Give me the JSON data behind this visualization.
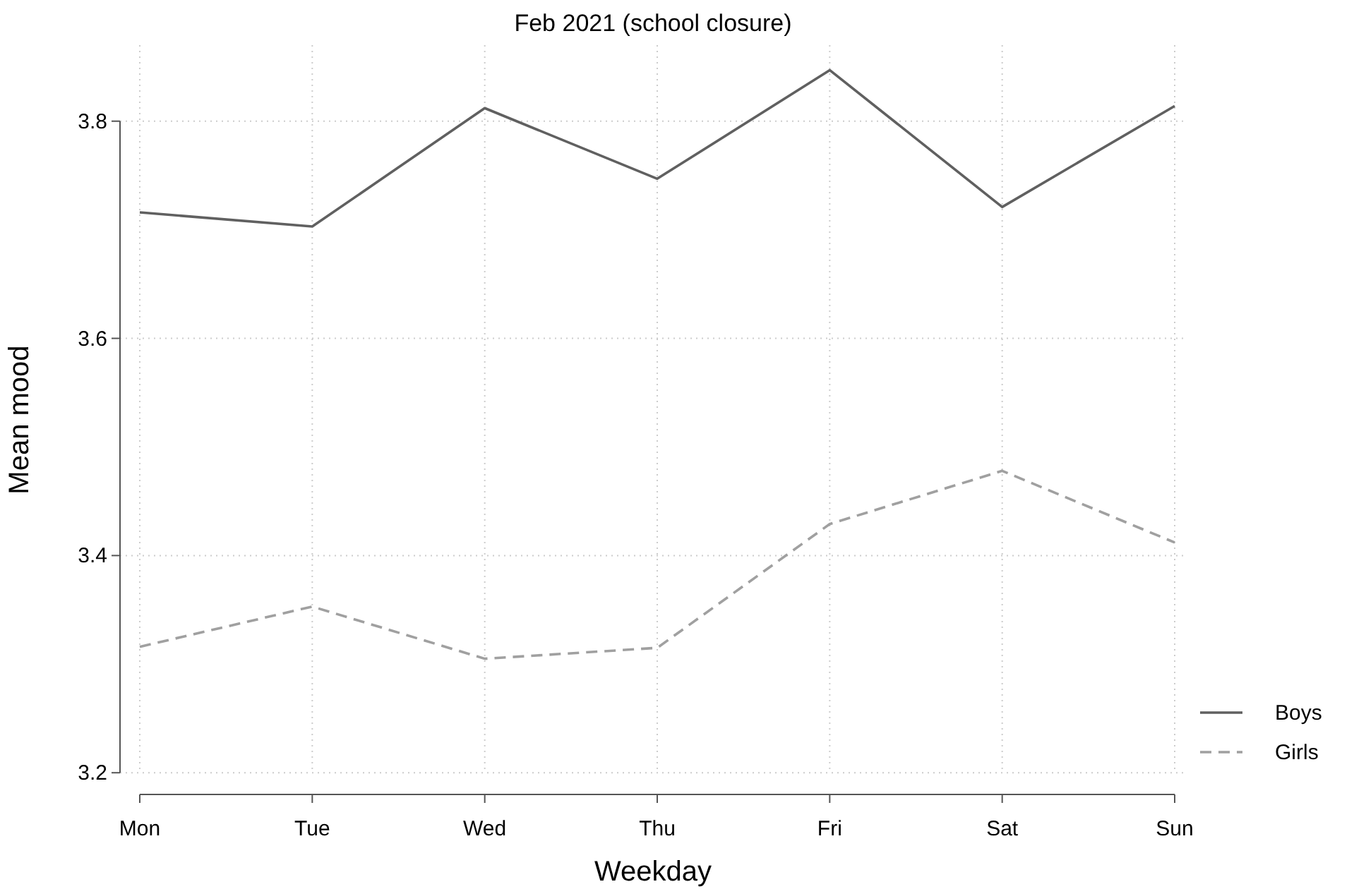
{
  "chart_data": {
    "type": "line",
    "title": "Feb 2021 (school closure)",
    "xlabel": "Weekday",
    "ylabel": "Mean mood",
    "categories": [
      "Mon",
      "Tue",
      "Wed",
      "Thu",
      "Fri",
      "Sat",
      "Sun"
    ],
    "series": [
      {
        "name": "Boys",
        "color": "#606060",
        "line_style": "solid",
        "values": [
          3.716,
          3.703,
          3.812,
          3.747,
          3.847,
          3.721,
          3.814
        ]
      },
      {
        "name": "Girls",
        "color": "#a0a0a0",
        "line_style": "dashed",
        "values": [
          3.316,
          3.353,
          3.305,
          3.315,
          3.429,
          3.478,
          3.412
        ]
      }
    ],
    "ylim": [
      3.18,
      3.87
    ],
    "yticks": [
      3.2,
      3.4,
      3.6,
      3.8
    ],
    "grid": true,
    "legend": "bottom right",
    "marker": "none"
  }
}
